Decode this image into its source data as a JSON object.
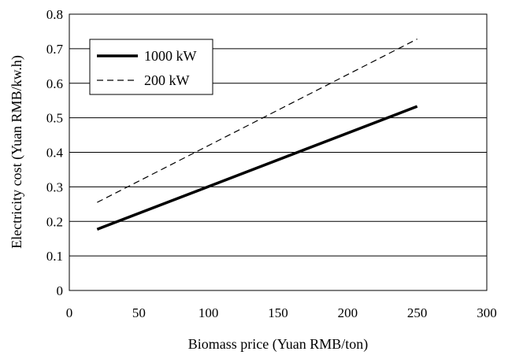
{
  "chart_data": {
    "type": "line",
    "xlabel": "Biomass price (Yuan RMB/ton)",
    "ylabel": "Electricity cost (Yuan RMB/kw.h)",
    "xlim": [
      0,
      300
    ],
    "ylim": [
      0,
      0.8
    ],
    "x_ticks": [
      "0",
      "50",
      "100",
      "150",
      "200",
      "250",
      "300"
    ],
    "y_ticks": [
      "0",
      "0.1",
      "0.2",
      "0.3",
      "0.4",
      "0.5",
      "0.6",
      "0.7",
      "0.8"
    ],
    "grid": "horizontal",
    "legend_position": "top-left",
    "series": [
      {
        "name": "1000 kW",
        "x": [
          20,
          250
        ],
        "y": [
          0.177,
          0.533
        ],
        "style": "solid",
        "color": "#000000"
      },
      {
        "name": "200 kW",
        "x": [
          20,
          250
        ],
        "y": [
          0.255,
          0.728
        ],
        "style": "dashed",
        "color": "#000000"
      }
    ]
  }
}
